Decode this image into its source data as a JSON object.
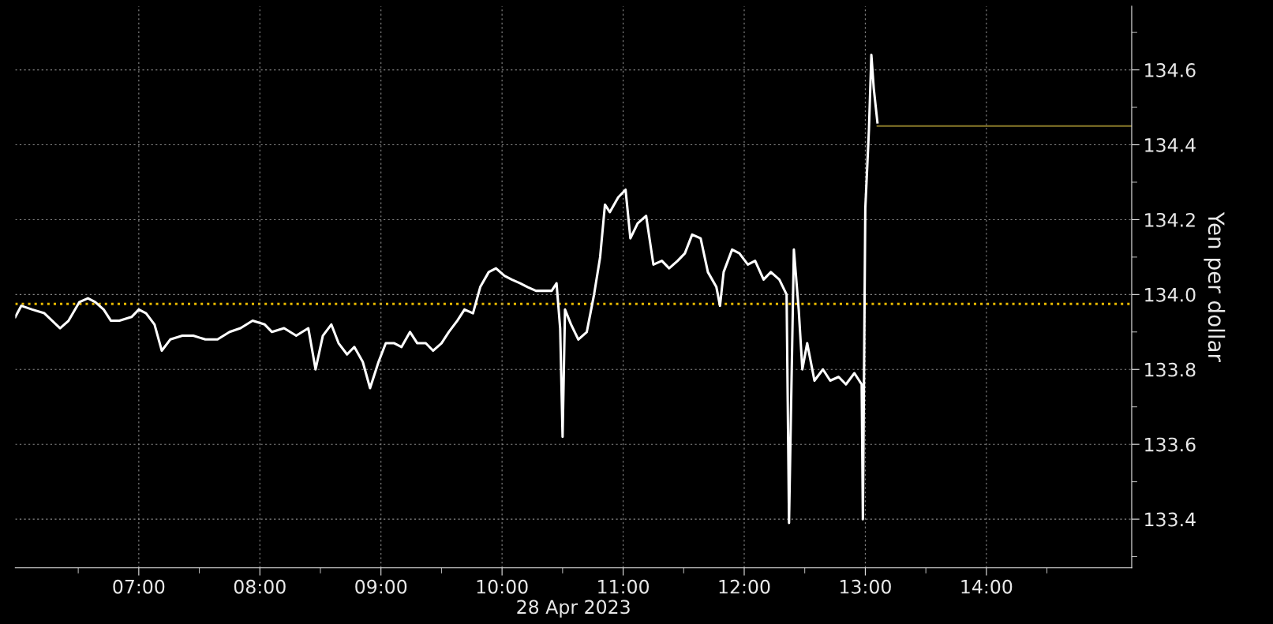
{
  "chart_data": {
    "type": "line",
    "xlabel": "28 Apr 2023",
    "ylabel": "Yen per dollar",
    "xlim": [
      5.98,
      15.2
    ],
    "ylim": [
      133.27,
      134.77
    ],
    "xticks": [
      {
        "value": 6.5,
        "label": null
      },
      {
        "value": 7,
        "label": "07:00"
      },
      {
        "value": 7.5,
        "label": null
      },
      {
        "value": 8,
        "label": "08:00"
      },
      {
        "value": 8.5,
        "label": null
      },
      {
        "value": 9,
        "label": "09:00"
      },
      {
        "value": 9.5,
        "label": null
      },
      {
        "value": 10,
        "label": "10:00"
      },
      {
        "value": 10.5,
        "label": null
      },
      {
        "value": 11,
        "label": "11:00"
      },
      {
        "value": 11.5,
        "label": null
      },
      {
        "value": 12,
        "label": "12:00"
      },
      {
        "value": 12.5,
        "label": null
      },
      {
        "value": 13,
        "label": "13:00"
      },
      {
        "value": 13.5,
        "label": null
      },
      {
        "value": 14,
        "label": "14:00"
      },
      {
        "value": 14.5,
        "label": null
      }
    ],
    "yticks": [
      {
        "value": 133.3,
        "label": null
      },
      133.4,
      {
        "value": 133.5,
        "label": null
      },
      133.6,
      {
        "value": 133.7,
        "label": null
      },
      133.8,
      {
        "value": 133.9,
        "label": null
      },
      {
        "value": 134.0,
        "label": "134.0"
      },
      {
        "value": 134.1,
        "label": null
      },
      134.2,
      {
        "value": 134.3,
        "label": null
      },
      134.4,
      {
        "value": 134.5,
        "label": null
      },
      134.6,
      {
        "value": 134.7,
        "label": null
      }
    ],
    "grid": true,
    "legend": false,
    "ref_lines": [
      {
        "axis": "y",
        "value": 133.975,
        "color": "#e6b800",
        "line_style": "dotted"
      }
    ],
    "series": [
      {
        "color": "#ffffff",
        "x": [
          5.98,
          6.03,
          6.12,
          6.22,
          6.35,
          6.42,
          6.51,
          6.58,
          6.64,
          6.71,
          6.77,
          6.84,
          6.94,
          7.0,
          7.06,
          7.13,
          7.19,
          7.26,
          7.36,
          7.45,
          7.55,
          7.65,
          7.75,
          7.84,
          7.94,
          8.04,
          8.1,
          8.2,
          8.3,
          8.4,
          8.46,
          8.52,
          8.59,
          8.65,
          8.72,
          8.78,
          8.85,
          8.91,
          8.98,
          9.04,
          9.11,
          9.17,
          9.24,
          9.3,
          9.37,
          9.43,
          9.5,
          9.56,
          9.63,
          9.69,
          9.76,
          9.82,
          9.89,
          9.95,
          10.02,
          10.08,
          10.15,
          10.21,
          10.28,
          10.34,
          10.41,
          10.45,
          10.48,
          10.5,
          10.52,
          10.57,
          10.63,
          10.7,
          10.76,
          10.81,
          10.85,
          10.89,
          10.96,
          11.02,
          11.06,
          11.12,
          11.19,
          11.25,
          11.32,
          11.38,
          11.45,
          11.51,
          11.57,
          11.64,
          11.7,
          11.77,
          11.8,
          11.83,
          11.9,
          11.96,
          12.03,
          12.09,
          12.16,
          12.22,
          12.29,
          12.35,
          12.37,
          12.41,
          12.45,
          12.48,
          12.52,
          12.58,
          12.65,
          12.71,
          12.78,
          12.84,
          12.91,
          12.97,
          12.98,
          13.0,
          13.03,
          13.05,
          13.07,
          13.1
        ],
        "values": [
          133.94,
          133.97,
          133.96,
          133.95,
          133.91,
          133.93,
          133.98,
          133.99,
          133.98,
          133.96,
          133.93,
          133.93,
          133.94,
          133.96,
          133.95,
          133.92,
          133.85,
          133.88,
          133.89,
          133.89,
          133.88,
          133.88,
          133.9,
          133.91,
          133.93,
          133.92,
          133.9,
          133.91,
          133.89,
          133.91,
          133.8,
          133.89,
          133.92,
          133.87,
          133.84,
          133.86,
          133.82,
          133.75,
          133.82,
          133.87,
          133.87,
          133.86,
          133.9,
          133.87,
          133.87,
          133.85,
          133.87,
          133.9,
          133.93,
          133.96,
          133.95,
          134.02,
          134.06,
          134.07,
          134.05,
          134.04,
          134.03,
          134.02,
          134.01,
          134.01,
          134.01,
          134.03,
          133.91,
          133.62,
          133.96,
          133.92,
          133.88,
          133.9,
          134.0,
          134.1,
          134.24,
          134.22,
          134.26,
          134.28,
          134.15,
          134.19,
          134.21,
          134.08,
          134.09,
          134.07,
          134.09,
          134.11,
          134.16,
          134.15,
          134.06,
          134.02,
          133.97,
          134.06,
          134.12,
          134.11,
          134.08,
          134.09,
          134.04,
          134.06,
          134.04,
          134.0,
          133.39,
          134.12,
          133.96,
          133.8,
          133.87,
          133.77,
          133.8,
          133.77,
          133.78,
          133.76,
          133.79,
          133.76,
          133.4,
          134.23,
          134.44,
          134.64,
          134.55,
          134.46
        ]
      },
      {
        "color": "#8a7a2a",
        "x": [
          13.1,
          15.2
        ],
        "values": [
          134.45,
          134.45
        ]
      }
    ]
  }
}
